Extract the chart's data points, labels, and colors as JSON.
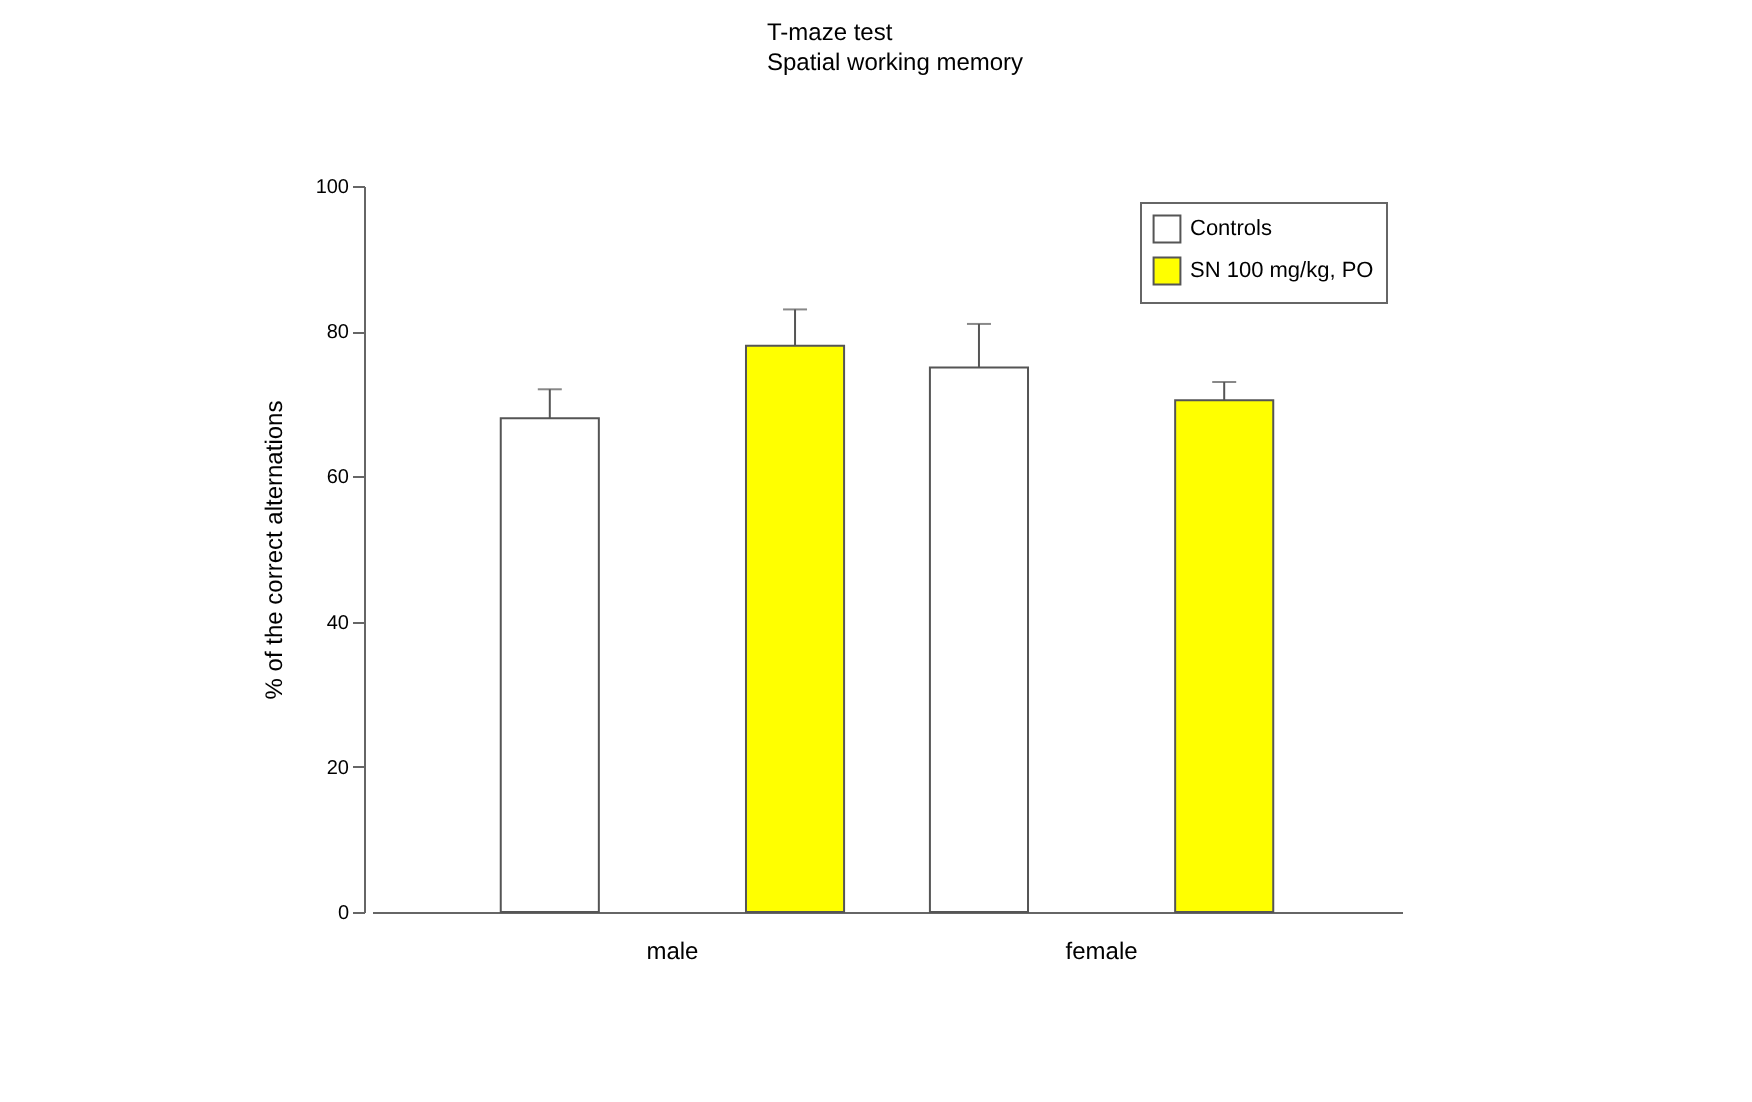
{
  "chart_data": {
    "type": "bar",
    "title": "T-maze test",
    "subtitle": "Spatial working memory",
    "ylabel": "% of the correct alternations",
    "categories": [
      "male",
      "female"
    ],
    "series": [
      {
        "name": "Controls",
        "color": "#ffffff",
        "values": [
          68,
          75
        ],
        "errors": [
          [
            68,
            72
          ],
          [
            75,
            81
          ]
        ]
      },
      {
        "name": "SN 100 mg/kg, PO",
        "color": "#ffff00",
        "values": [
          78,
          70.5
        ],
        "errors": [
          [
            78,
            83
          ],
          [
            70.5,
            73
          ]
        ]
      }
    ],
    "ylim": [
      0,
      100
    ],
    "yticks": [
      0,
      20,
      40,
      60,
      80,
      100
    ],
    "grid": false,
    "legend": "top right"
  }
}
